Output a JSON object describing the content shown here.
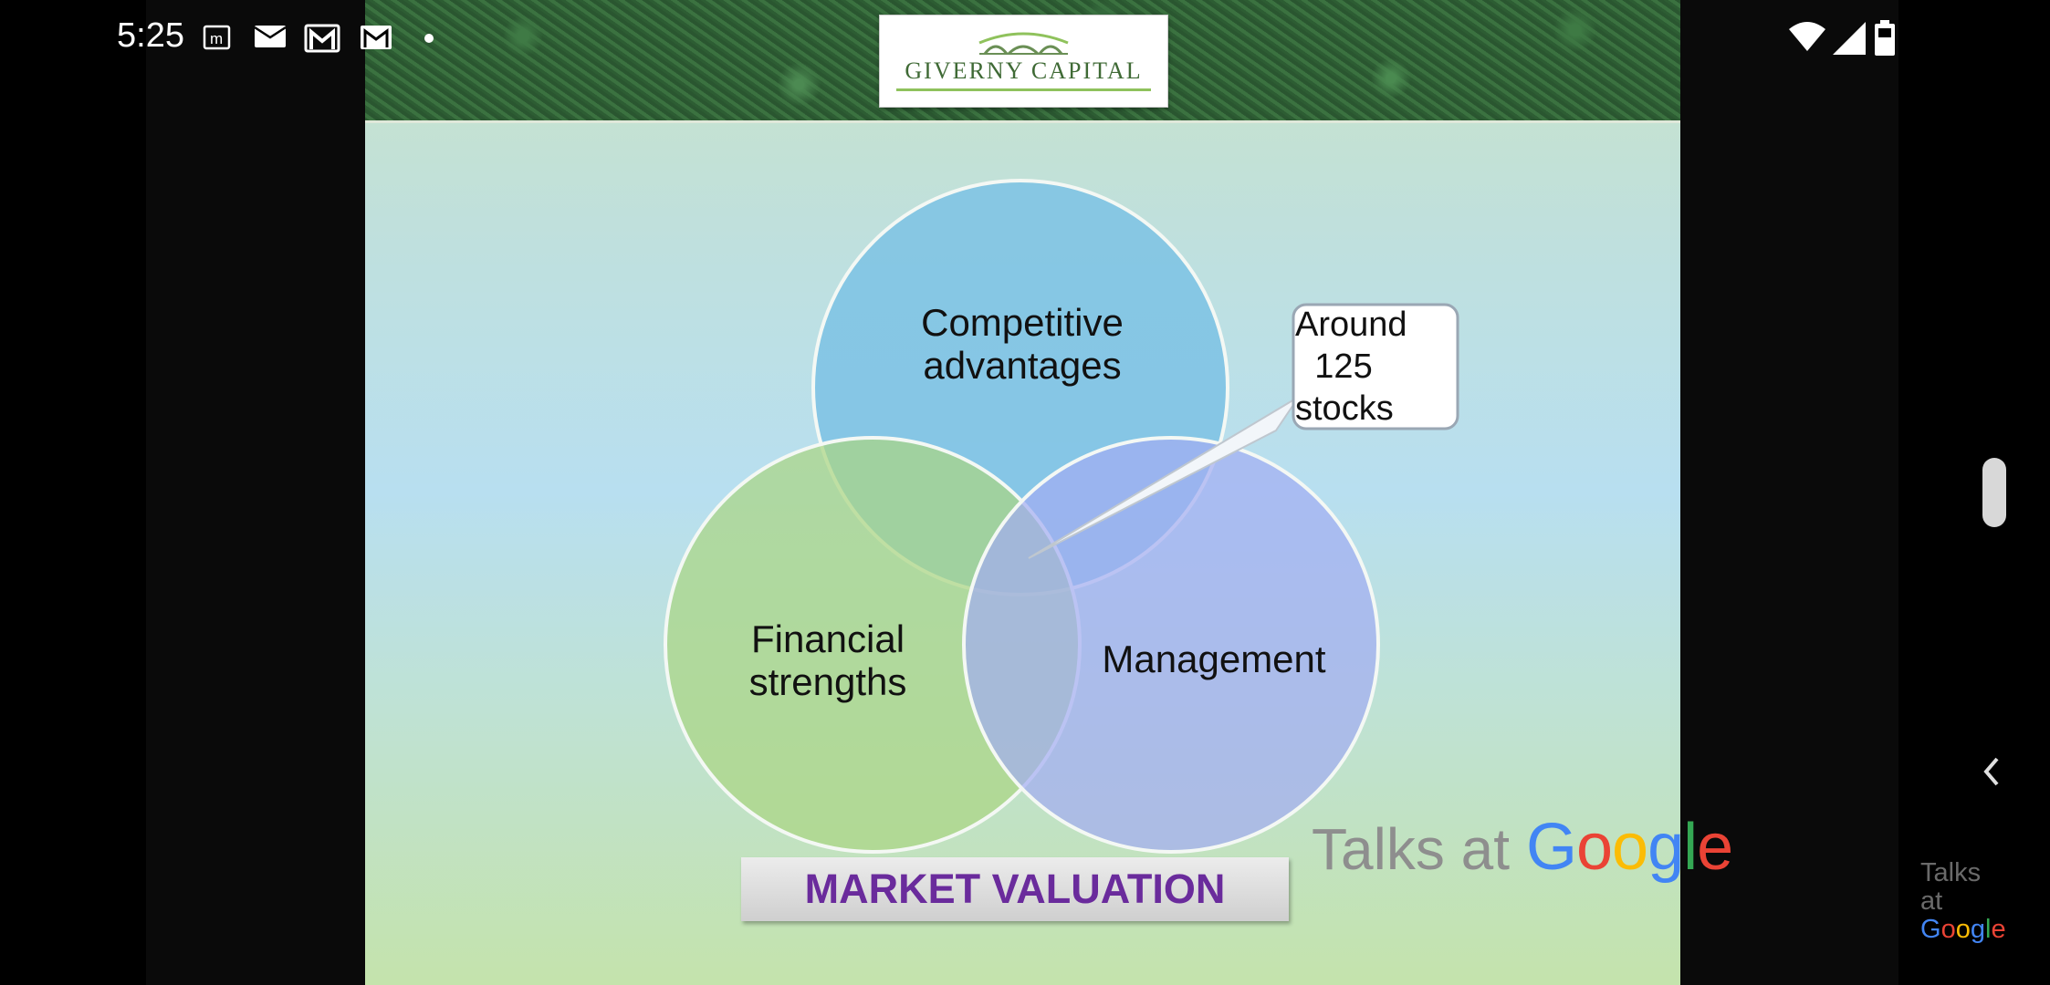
{
  "status_bar": {
    "time": "5:25",
    "notification_icons": [
      "m-icon",
      "mail-icon",
      "gmail-icon",
      "gmail-icon",
      "dot-icon"
    ],
    "right_icons": [
      "wifi-icon",
      "signal-icon",
      "battery-icon"
    ]
  },
  "slide": {
    "logo_text": "GIVERNY CAPITAL",
    "venn": {
      "circle_top": "Competitive advantages",
      "circle_top_lines": [
        "Competitive",
        "advantages"
      ],
      "circle_left_lines": [
        "Financial",
        "strengths"
      ],
      "circle_right": "Management"
    },
    "callout_lines": [
      "Around",
      "125",
      "stocks"
    ],
    "bottom_label": "MARKET VALUATION"
  },
  "watermark": {
    "talks_at": "Talks at",
    "google": "Google",
    "small_lines": [
      "Talks",
      "at",
      "Google"
    ]
  },
  "colors": {
    "circle_blue": "#7cc2e4",
    "circle_green": "#b4da8c",
    "circle_purple": "#a9b4f2",
    "market_text": "#6a2b9c"
  }
}
